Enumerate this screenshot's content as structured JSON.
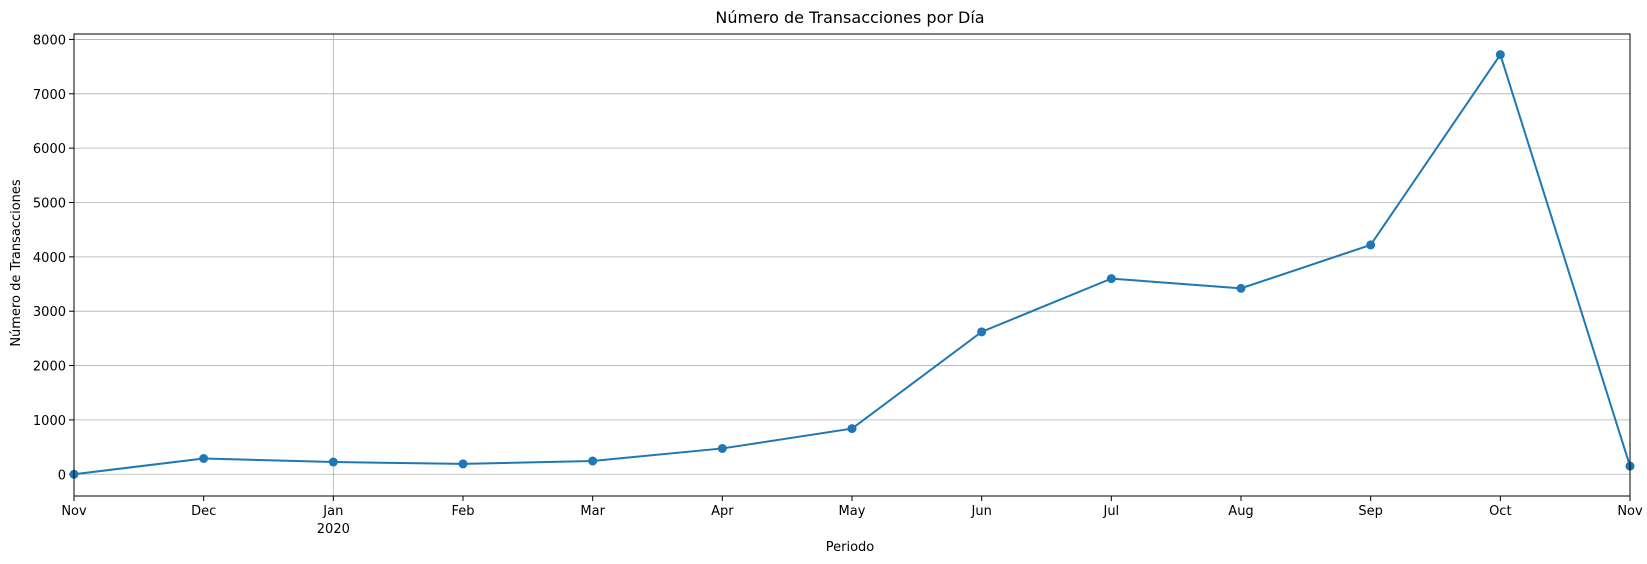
{
  "chart_data": {
    "type": "line",
    "title": "Número de Transacciones por Día",
    "xlabel": "Periodo",
    "ylabel": "Número de Transacciones",
    "grid": true,
    "ylim": [
      -400,
      8100
    ],
    "yticks": [
      0,
      1000,
      2000,
      3000,
      4000,
      5000,
      6000,
      7000,
      8000
    ],
    "xticks": [
      {
        "label": "Nov",
        "sublabel": ""
      },
      {
        "label": "Dec",
        "sublabel": ""
      },
      {
        "label": "Jan",
        "sublabel": "2020"
      },
      {
        "label": "Feb",
        "sublabel": ""
      },
      {
        "label": "Mar",
        "sublabel": ""
      },
      {
        "label": "Apr",
        "sublabel": ""
      },
      {
        "label": "May",
        "sublabel": ""
      },
      {
        "label": "Jun",
        "sublabel": ""
      },
      {
        "label": "Jul",
        "sublabel": ""
      },
      {
        "label": "Aug",
        "sublabel": ""
      },
      {
        "label": "Sep",
        "sublabel": ""
      },
      {
        "label": "Oct",
        "sublabel": ""
      },
      {
        "label": "Nov",
        "sublabel": ""
      }
    ],
    "x": [
      "2019-11",
      "2019-12",
      "2020-01",
      "2020-02",
      "2020-03",
      "2020-04",
      "2020-05",
      "2020-06",
      "2020-07",
      "2020-08",
      "2020-09",
      "2020-10",
      "2020-11"
    ],
    "series": [
      {
        "values": [
          0,
          290,
          225,
          190,
          245,
          475,
          840,
          2620,
          3600,
          3420,
          4220,
          7720,
          150
        ],
        "color": "#1f77b4"
      }
    ]
  }
}
